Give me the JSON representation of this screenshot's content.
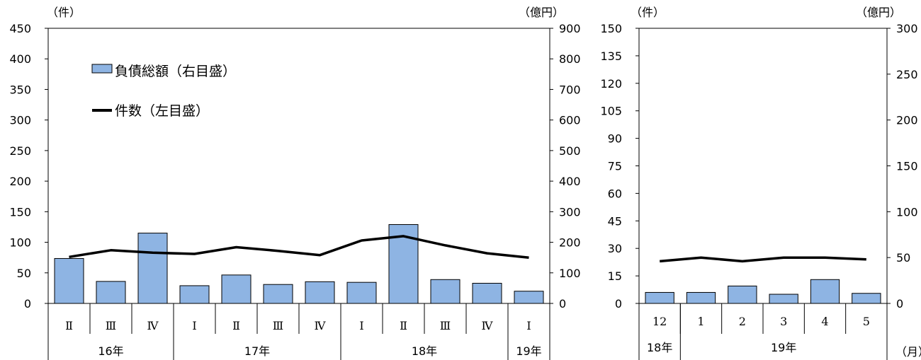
{
  "chart_data": [
    {
      "type": "bar+line",
      "left_axis": {
        "unit": "（件）",
        "min": 0,
        "max": 450,
        "step": 50
      },
      "right_axis": {
        "unit": "（億円）",
        "min": 0,
        "max": 900,
        "step": 100
      },
      "legend": {
        "bar": "負債総額（右目盛）",
        "line": "件数（左目盛）",
        "placement": "top-left"
      },
      "categories": [
        "Ⅱ",
        "Ⅲ",
        "Ⅳ",
        "Ⅰ",
        "Ⅱ",
        "Ⅲ",
        "Ⅳ",
        "Ⅰ",
        "Ⅱ",
        "Ⅲ",
        "Ⅳ",
        "Ⅰ"
      ],
      "year_groups": [
        {
          "label": "16年",
          "span": 3
        },
        {
          "label": "17年",
          "span": 4
        },
        {
          "label": "18年",
          "span": 4
        },
        {
          "label": "19年",
          "span": 1
        }
      ],
      "series": [
        {
          "name": "負債総額（右目盛）",
          "type": "bar",
          "axis": "right",
          "color": "#8EB4E3",
          "values": [
            147,
            72,
            230,
            58,
            93,
            62,
            71,
            69,
            258,
            78,
            66,
            40
          ]
        },
        {
          "name": "件数（左目盛）",
          "type": "line",
          "axis": "left",
          "color": "#000000",
          "values": [
            76,
            87,
            83,
            81,
            92,
            86,
            79,
            103,
            110,
            95,
            82,
            75
          ]
        }
      ]
    },
    {
      "type": "bar+line",
      "left_axis": {
        "unit": "（件）",
        "min": 0,
        "max": 150,
        "step": 15
      },
      "right_axis": {
        "unit": "（億円）",
        "min": 0,
        "max": 300,
        "step": 50
      },
      "month_unit": "（月）",
      "categories": [
        "12",
        "1",
        "2",
        "3",
        "4",
        "5"
      ],
      "year_groups": [
        {
          "label": "18年",
          "span": 1
        },
        {
          "label": "19年",
          "span": 5
        }
      ],
      "series": [
        {
          "name": "負債総額",
          "type": "bar",
          "axis": "right",
          "color": "#8EB4E3",
          "values": [
            12,
            12,
            19,
            10,
            26,
            11
          ]
        },
        {
          "name": "件数",
          "type": "line",
          "axis": "left",
          "color": "#000000",
          "values": [
            23,
            25,
            23,
            25,
            25,
            24
          ]
        }
      ]
    }
  ]
}
